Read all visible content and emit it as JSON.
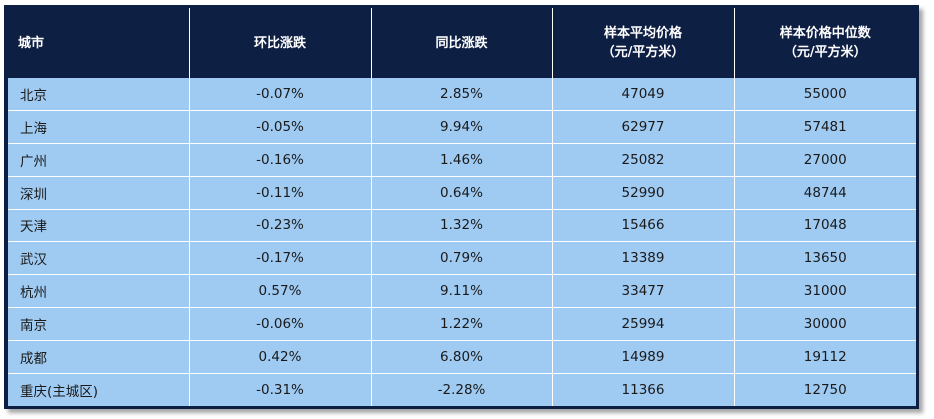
{
  "table": {
    "headers": [
      {
        "line1": "城市",
        "line2": ""
      },
      {
        "line1": "环比涨跌",
        "line2": ""
      },
      {
        "line1": "同比涨跌",
        "line2": ""
      },
      {
        "line1": "样本平均价格",
        "line2": "（元/平方米）"
      },
      {
        "line1": "样本价格中位数",
        "line2": "（元/平方米）"
      }
    ],
    "rows": [
      {
        "city": "北京",
        "mom": "-0.07%",
        "yoy": "2.85%",
        "avg": "47049",
        "median": "55000"
      },
      {
        "city": "上海",
        "mom": "-0.05%",
        "yoy": "9.94%",
        "avg": "62977",
        "median": "57481"
      },
      {
        "city": "广州",
        "mom": "-0.16%",
        "yoy": "1.46%",
        "avg": "25082",
        "median": "27000"
      },
      {
        "city": "深圳",
        "mom": "-0.11%",
        "yoy": "0.64%",
        "avg": "52990",
        "median": "48744"
      },
      {
        "city": "天津",
        "mom": "-0.23%",
        "yoy": "1.32%",
        "avg": "15466",
        "median": "17048"
      },
      {
        "city": "武汉",
        "mom": "-0.17%",
        "yoy": "0.79%",
        "avg": "13389",
        "median": "13650"
      },
      {
        "city": "杭州",
        "mom": "0.57%",
        "yoy": "9.11%",
        "avg": "33477",
        "median": "31000"
      },
      {
        "city": "南京",
        "mom": "-0.06%",
        "yoy": "1.22%",
        "avg": "25994",
        "median": "30000"
      },
      {
        "city": "成都",
        "mom": "0.42%",
        "yoy": "6.80%",
        "avg": "14989",
        "median": "19112"
      },
      {
        "city": "重庆(主城区)",
        "mom": "-0.31%",
        "yoy": "-2.28%",
        "avg": "11366",
        "median": "12750"
      }
    ]
  },
  "colors": {
    "header_bg": "#0e1f44",
    "cell_bg": "#9fcaf2",
    "grid": "#ffffff"
  }
}
